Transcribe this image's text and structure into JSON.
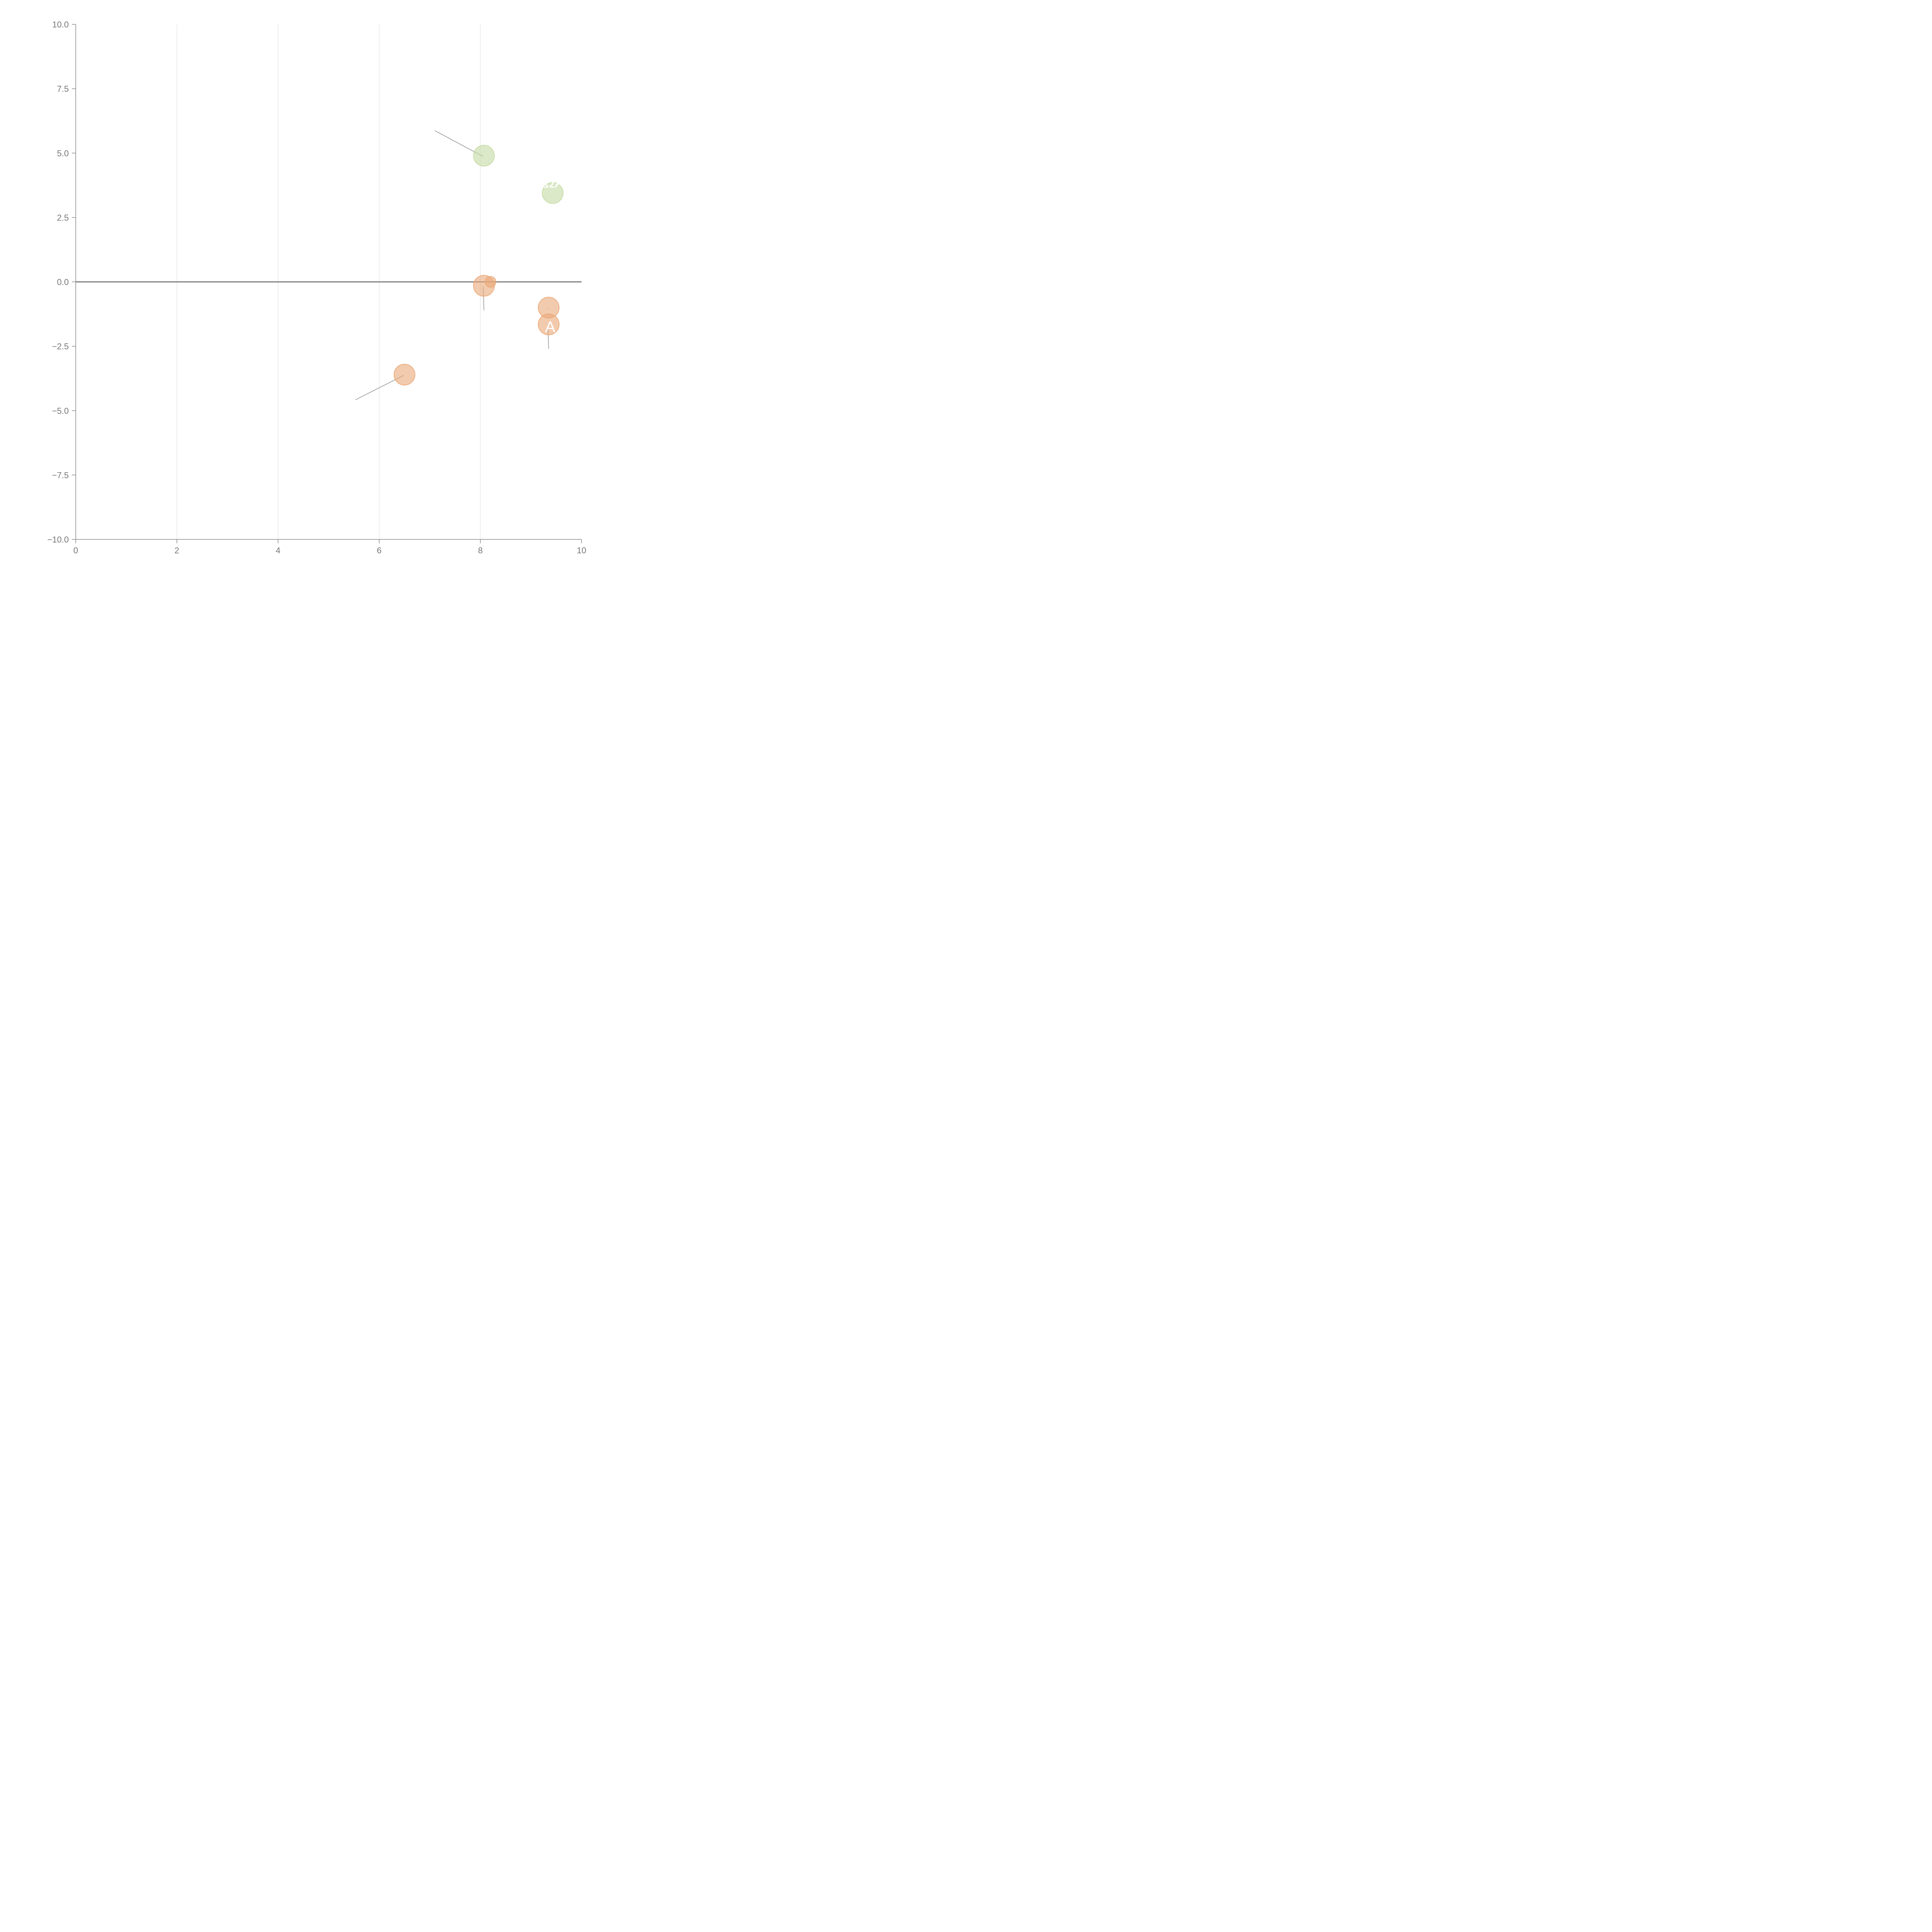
{
  "chart_data": {
    "type": "scatter",
    "title": "",
    "xlabel": "",
    "ylabel": "",
    "xlim": [
      0,
      10
    ],
    "ylim": [
      -10,
      10
    ],
    "x_ticks": [
      "0",
      "2",
      "4",
      "6",
      "8",
      "10"
    ],
    "y_ticks": [
      "10.0",
      "7.5",
      "5.0",
      "2.5",
      "0.0",
      "−2.5",
      "−5.0",
      "−7.5",
      "−10.0"
    ],
    "grid": "vertical",
    "zero_line": true,
    "colors": {
      "green": "#c5dba4",
      "orange": "#eaa878",
      "leader": "#aaaaaa"
    },
    "points": [
      {
        "x": 8.07,
        "y": 4.9,
        "size": "large",
        "color": "green",
        "label": "",
        "leader_to": [
          7.1,
          5.87
        ]
      },
      {
        "x": 9.43,
        "y": 3.45,
        "size": "large",
        "color": "green",
        "label": "ΩA",
        "leader_to": null
      },
      {
        "x": 8.07,
        "y": -0.15,
        "size": "large",
        "color": "orange",
        "label": "",
        "leader_to": [
          8.07,
          -1.1
        ]
      },
      {
        "x": 8.2,
        "y": 0.0,
        "size": "small",
        "color": "orange",
        "label": "",
        "leader_to": null
      },
      {
        "x": 9.35,
        "y": -1.0,
        "size": "large",
        "color": "orange",
        "label": "",
        "leader_to": [
          9.35,
          -1.05
        ]
      },
      {
        "x": 9.35,
        "y": -1.65,
        "size": "large",
        "color": "orange",
        "label": "A",
        "leader_to": [
          9.35,
          -2.6
        ]
      },
      {
        "x": 6.5,
        "y": -3.6,
        "size": "large",
        "color": "orange",
        "label": "",
        "leader_to": [
          5.53,
          -4.58
        ]
      }
    ]
  }
}
